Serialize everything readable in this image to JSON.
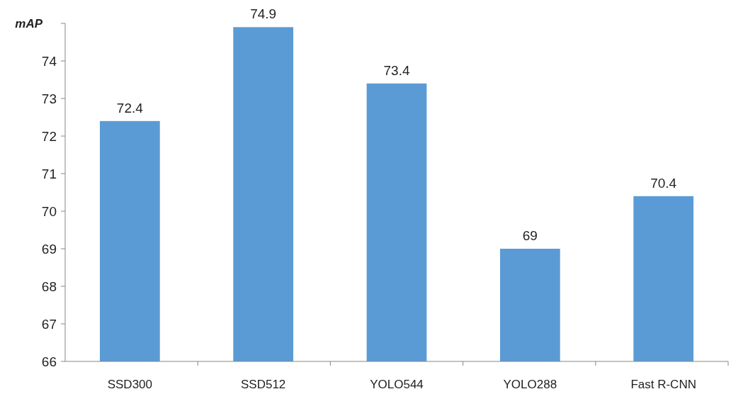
{
  "chart_data": {
    "type": "bar",
    "ylabel": "mAP",
    "categories": [
      "SSD300",
      "SSD512",
      "YOLO544",
      "YOLO288",
      "Fast R-CNN"
    ],
    "values": [
      72.4,
      74.9,
      73.4,
      69,
      70.4
    ],
    "color": "#5b9bd5",
    "ylim": [
      66,
      75
    ],
    "yticks": [
      66,
      67,
      68,
      69,
      70,
      71,
      72,
      73,
      74,
      {
        "value": 75,
        "label": null
      }
    ],
    "data_labels": true
  }
}
